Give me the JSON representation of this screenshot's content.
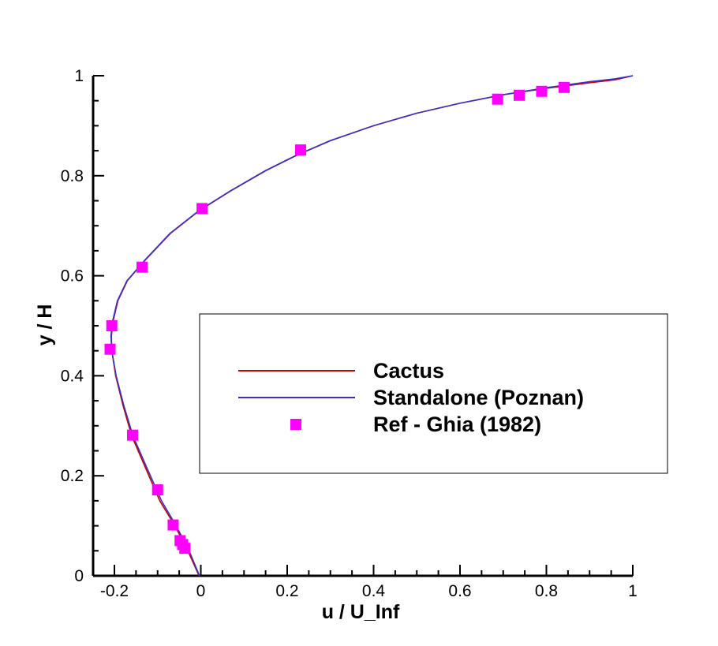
{
  "chart_data": {
    "type": "line",
    "title": "",
    "xlabel": "u / U_Inf",
    "ylabel": "y / H",
    "xlim": [
      -0.2,
      1.0
    ],
    "ylim": [
      0,
      1.0
    ],
    "x_ticks": [
      "-0.2",
      "0",
      "0.2",
      "0.4",
      "0.6",
      "0.8",
      "1"
    ],
    "y_ticks": [
      "0",
      "0.2",
      "0.4",
      "0.6",
      "0.8",
      "1"
    ],
    "grid": false,
    "legend": {
      "placement": "center-right",
      "entries": [
        "Cactus",
        "Standalone (Poznan)",
        "Ref - Ghia (1982)"
      ]
    },
    "series": [
      {
        "name": "Cactus",
        "kind": "line",
        "color": "#cc0000",
        "points": [
          [
            -0.004,
            0.0
          ],
          [
            -0.03,
            0.05
          ],
          [
            -0.06,
            0.1
          ],
          [
            -0.095,
            0.15
          ],
          [
            -0.13,
            0.22
          ],
          [
            -0.16,
            0.28
          ],
          [
            -0.18,
            0.34
          ],
          [
            -0.197,
            0.4
          ],
          [
            -0.206,
            0.45
          ],
          [
            -0.207,
            0.48
          ],
          [
            -0.203,
            0.51
          ],
          [
            -0.192,
            0.55
          ],
          [
            -0.17,
            0.59
          ],
          [
            -0.13,
            0.63
          ],
          [
            -0.07,
            0.685
          ],
          [
            -0.004,
            0.73
          ],
          [
            0.07,
            0.77
          ],
          [
            0.15,
            0.81
          ],
          [
            0.22,
            0.84
          ],
          [
            0.3,
            0.87
          ],
          [
            0.4,
            0.9
          ],
          [
            0.5,
            0.925
          ],
          [
            0.6,
            0.945
          ],
          [
            0.7,
            0.962
          ],
          [
            0.8,
            0.975
          ],
          [
            0.9,
            0.986
          ],
          [
            0.96,
            0.992
          ],
          [
            1.0,
            1.0
          ]
        ]
      },
      {
        "name": "Standalone (Poznan)",
        "kind": "line",
        "color": "#3333cc",
        "points": [
          [
            -0.003,
            0.0
          ],
          [
            -0.027,
            0.05
          ],
          [
            -0.057,
            0.1
          ],
          [
            -0.091,
            0.15
          ],
          [
            -0.127,
            0.22
          ],
          [
            -0.157,
            0.28
          ],
          [
            -0.178,
            0.34
          ],
          [
            -0.196,
            0.4
          ],
          [
            -0.206,
            0.45
          ],
          [
            -0.208,
            0.48
          ],
          [
            -0.204,
            0.51
          ],
          [
            -0.193,
            0.55
          ],
          [
            -0.171,
            0.59
          ],
          [
            -0.131,
            0.63
          ],
          [
            -0.071,
            0.685
          ],
          [
            -0.005,
            0.73
          ],
          [
            0.069,
            0.77
          ],
          [
            0.149,
            0.81
          ],
          [
            0.219,
            0.84
          ],
          [
            0.299,
            0.87
          ],
          [
            0.4,
            0.9
          ],
          [
            0.5,
            0.925
          ],
          [
            0.6,
            0.945
          ],
          [
            0.7,
            0.962
          ],
          [
            0.8,
            0.976
          ],
          [
            0.9,
            0.988
          ],
          [
            0.96,
            0.994
          ],
          [
            1.0,
            1.0
          ]
        ]
      },
      {
        "name": "Ref - Ghia (1982)",
        "kind": "scatter",
        "color": "#ff00ff",
        "points": [
          [
            -0.037,
            0.055
          ],
          [
            -0.042,
            0.0625
          ],
          [
            -0.048,
            0.0703
          ],
          [
            -0.064,
            0.1016
          ],
          [
            -0.1,
            0.1719
          ],
          [
            -0.158,
            0.2813
          ],
          [
            -0.21,
            0.4531
          ],
          [
            -0.206,
            0.5
          ],
          [
            -0.136,
            0.6172
          ],
          [
            0.003,
            0.7344
          ],
          [
            0.231,
            0.8516
          ],
          [
            0.687,
            0.9531
          ],
          [
            0.737,
            0.9609
          ],
          [
            0.789,
            0.9688
          ],
          [
            0.841,
            0.9766
          ]
        ]
      }
    ]
  }
}
